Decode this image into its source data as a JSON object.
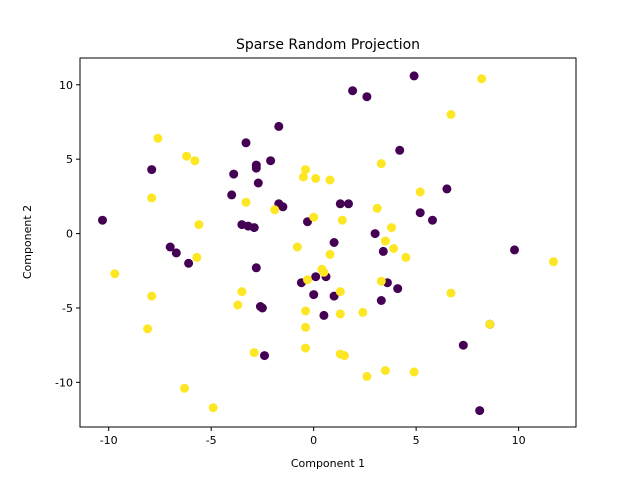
{
  "chart_data": {
    "type": "scatter",
    "title": "Sparse Random Projection",
    "xlabel": "Component 1",
    "ylabel": "Component 2",
    "xlim": [
      -11.4,
      12.8
    ],
    "ylim": [
      -13.0,
      11.8
    ],
    "xticks": [
      -10,
      -5,
      0,
      5,
      10
    ],
    "yticks": [
      -10,
      -5,
      0,
      5,
      10
    ],
    "grid": false,
    "colors": {
      "class_0": "#440154",
      "class_1": "#fde725"
    },
    "series": [
      {
        "color_key": "class_0",
        "points": [
          [
            4.9,
            10.6
          ],
          [
            1.9,
            9.6
          ],
          [
            2.6,
            9.2
          ],
          [
            -1.7,
            7.2
          ],
          [
            -3.3,
            6.1
          ],
          [
            -7.9,
            4.3
          ],
          [
            4.2,
            5.6
          ],
          [
            -3.9,
            4.0
          ],
          [
            -2.8,
            4.6
          ],
          [
            -2.8,
            4.4
          ],
          [
            -2.1,
            4.9
          ],
          [
            -2.7,
            3.4
          ],
          [
            6.5,
            3.0
          ],
          [
            -4.0,
            2.6
          ],
          [
            -1.7,
            2.0
          ],
          [
            -1.5,
            1.8
          ],
          [
            1.3,
            2.0
          ],
          [
            1.7,
            2.0
          ],
          [
            5.2,
            1.4
          ],
          [
            5.8,
            0.9
          ],
          [
            -10.3,
            0.9
          ],
          [
            -0.3,
            0.8
          ],
          [
            -3.5,
            0.6
          ],
          [
            -3.2,
            0.5
          ],
          [
            -2.9,
            0.4
          ],
          [
            3.0,
            0.0
          ],
          [
            1.0,
            -0.6
          ],
          [
            -7.0,
            -0.9
          ],
          [
            -6.7,
            -1.3
          ],
          [
            3.4,
            -1.2
          ],
          [
            9.8,
            -1.1
          ],
          [
            -6.1,
            -2.0
          ],
          [
            -2.8,
            -2.3
          ],
          [
            0.1,
            -2.9
          ],
          [
            0.6,
            -2.9
          ],
          [
            -0.6,
            -3.3
          ],
          [
            3.6,
            -3.3
          ],
          [
            4.1,
            -3.7
          ],
          [
            0.0,
            -4.1
          ],
          [
            1.0,
            -4.2
          ],
          [
            3.3,
            -4.5
          ],
          [
            -2.6,
            -4.9
          ],
          [
            -2.5,
            -5.0
          ],
          [
            0.5,
            -5.5
          ],
          [
            8.6,
            -6.1
          ],
          [
            7.3,
            -7.5
          ],
          [
            -2.4,
            -8.2
          ],
          [
            8.1,
            -11.9
          ]
        ]
      },
      {
        "color_key": "class_1",
        "points": [
          [
            8.2,
            10.4
          ],
          [
            6.7,
            8.0
          ],
          [
            -7.6,
            6.4
          ],
          [
            -6.2,
            5.2
          ],
          [
            -5.8,
            4.9
          ],
          [
            3.3,
            4.7
          ],
          [
            -0.4,
            4.3
          ],
          [
            -0.5,
            3.8
          ],
          [
            0.1,
            3.7
          ],
          [
            0.8,
            3.6
          ],
          [
            5.2,
            2.8
          ],
          [
            -7.9,
            2.4
          ],
          [
            -3.3,
            2.1
          ],
          [
            -1.9,
            1.6
          ],
          [
            3.1,
            1.7
          ],
          [
            0.0,
            1.1
          ],
          [
            1.4,
            0.9
          ],
          [
            -5.6,
            0.6
          ],
          [
            3.8,
            0.4
          ],
          [
            3.5,
            -0.5
          ],
          [
            -0.8,
            -0.9
          ],
          [
            3.9,
            -1.0
          ],
          [
            0.8,
            -1.4
          ],
          [
            -5.7,
            -1.6
          ],
          [
            4.5,
            -1.6
          ],
          [
            11.7,
            -1.9
          ],
          [
            0.4,
            -2.4
          ],
          [
            0.5,
            -2.6
          ],
          [
            -9.7,
            -2.7
          ],
          [
            -0.3,
            -3.1
          ],
          [
            3.3,
            -3.2
          ],
          [
            -3.5,
            -3.9
          ],
          [
            1.3,
            -3.9
          ],
          [
            6.7,
            -4.0
          ],
          [
            -7.9,
            -4.2
          ],
          [
            -3.7,
            -4.8
          ],
          [
            -0.4,
            -5.2
          ],
          [
            1.3,
            -5.4
          ],
          [
            2.4,
            -5.3
          ],
          [
            8.6,
            -6.1
          ],
          [
            -8.1,
            -6.4
          ],
          [
            -0.4,
            -6.3
          ],
          [
            -0.4,
            -7.7
          ],
          [
            -2.9,
            -8.0
          ],
          [
            1.3,
            -8.1
          ],
          [
            1.5,
            -8.2
          ],
          [
            3.5,
            -9.2
          ],
          [
            4.9,
            -9.3
          ],
          [
            2.6,
            -9.6
          ],
          [
            -6.3,
            -10.4
          ],
          [
            -4.9,
            -11.7
          ]
        ]
      }
    ]
  }
}
